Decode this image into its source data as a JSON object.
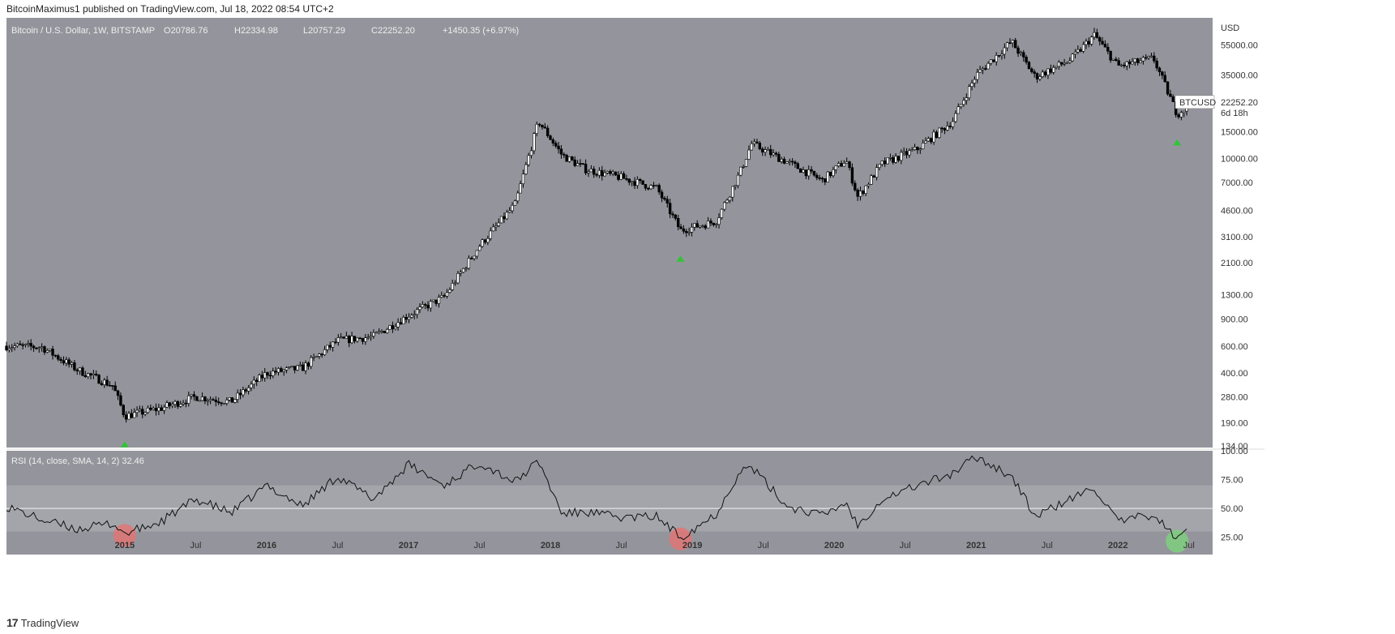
{
  "header": {
    "attribution": "BitcoinMaximus1 published on TradingView.com, Jul 18, 2022 08:54 UTC+2"
  },
  "legend": {
    "symbol": "Bitcoin / U.S. Dollar, 1W, BITSTAMP",
    "o_label": "O",
    "o_value": "20786.76",
    "h_label": "H",
    "h_value": "22334.98",
    "l_label": "L",
    "l_value": "20757.29",
    "c_label": "C",
    "c_value": "22252.20",
    "change": "+1450.35 (+6.97%)"
  },
  "price_tag": {
    "symbol": "BTCUSD",
    "price": "22252.20",
    "countdown": "6d 18h"
  },
  "rsi_legend": "RSI (14, close, SMA, 14, 2)  32.46",
  "footer": {
    "logo_mark": "17",
    "logo_text": "TradingView"
  },
  "colors": {
    "background": "#94959c",
    "rsi_band": "#a3a5ab",
    "candle_up": "#ffffff",
    "candle_down": "#000000",
    "marker_green": "#34c23a",
    "circle_red": "#e07676",
    "circle_green": "#7fcf7f"
  },
  "chart_data": [
    {
      "type": "candlestick",
      "title": "Bitcoin / U.S. Dollar, 1W, BITSTAMP",
      "scale": "log",
      "ylabel": "USD",
      "ylim": [
        134,
        75000
      ],
      "y_ticks": [
        "55000.00",
        "35000.00",
        "15000.00",
        "10000.00",
        "7000.00",
        "4600.00",
        "3100.00",
        "2100.00",
        "1300.00",
        "900.00",
        "600.00",
        "400.00",
        "280.00",
        "190.00",
        "134.00"
      ],
      "x_ticks": [
        "2015",
        "Jul",
        "2016",
        "Jul",
        "2017",
        "Jul",
        "2018",
        "Jul",
        "2019",
        "Jul",
        "2020",
        "Jul",
        "2021",
        "Jul",
        "2022",
        "Jul"
      ],
      "xlim": [
        "2014-03",
        "2022-09"
      ],
      "trend": [
        [
          "2014-03",
          600
        ],
        [
          "2014-06",
          590
        ],
        [
          "2014-09",
          420
        ],
        [
          "2014-12",
          330
        ],
        [
          "2015-01",
          210
        ],
        [
          "2015-04",
          235
        ],
        [
          "2015-07",
          280
        ],
        [
          "2015-10",
          260
        ],
        [
          "2016-01",
          400
        ],
        [
          "2016-04",
          430
        ],
        [
          "2016-07",
          650
        ],
        [
          "2016-10",
          690
        ],
        [
          "2017-01",
          950
        ],
        [
          "2017-04",
          1250
        ],
        [
          "2017-07",
          2700
        ],
        [
          "2017-10",
          5000
        ],
        [
          "2017-12",
          17500
        ],
        [
          "2018-02",
          10500
        ],
        [
          "2018-04",
          8500
        ],
        [
          "2018-07",
          7500
        ],
        [
          "2018-10",
          6400
        ],
        [
          "2018-12",
          3400
        ],
        [
          "2019-03",
          3900
        ],
        [
          "2019-05",
          8000
        ],
        [
          "2019-06",
          12500
        ],
        [
          "2019-09",
          9500
        ],
        [
          "2019-12",
          7200
        ],
        [
          "2020-02",
          9800
        ],
        [
          "2020-03",
          5600
        ],
        [
          "2020-05",
          9200
        ],
        [
          "2020-08",
          11500
        ],
        [
          "2020-11",
          17500
        ],
        [
          "2021-01",
          35000
        ],
        [
          "2021-04",
          58000
        ],
        [
          "2021-06",
          34000
        ],
        [
          "2021-09",
          44000
        ],
        [
          "2021-11",
          64000
        ],
        [
          "2022-01",
          40000
        ],
        [
          "2022-04",
          45000
        ],
        [
          "2022-06",
          19500
        ],
        [
          "2022-07",
          22252.2
        ]
      ],
      "markers": [
        {
          "date": "2015-01",
          "type": "green-up-arrow"
        },
        {
          "date": "2018-12",
          "type": "green-up-arrow"
        },
        {
          "date": "2022-06",
          "type": "green-up-arrow"
        }
      ],
      "last_price": 22252.2
    },
    {
      "type": "line",
      "title": "RSI (14, close, SMA, 14, 2)",
      "last_value": 32.46,
      "ylim": [
        10,
        100
      ],
      "y_ticks": [
        "100.00",
        "75.00",
        "50.00",
        "25.00"
      ],
      "band": [
        30,
        70
      ],
      "series": [
        [
          "2014-03",
          52
        ],
        [
          "2014-06",
          40
        ],
        [
          "2014-09",
          32
        ],
        [
          "2014-12",
          37
        ],
        [
          "2015-01",
          28
        ],
        [
          "2015-04",
          38
        ],
        [
          "2015-07",
          58
        ],
        [
          "2015-10",
          46
        ],
        [
          "2016-01",
          70
        ],
        [
          "2016-04",
          52
        ],
        [
          "2016-07",
          78
        ],
        [
          "2016-10",
          58
        ],
        [
          "2017-01",
          88
        ],
        [
          "2017-04",
          70
        ],
        [
          "2017-07",
          90
        ],
        [
          "2017-10",
          73
        ],
        [
          "2017-12",
          91
        ],
        [
          "2018-02",
          45
        ],
        [
          "2018-04",
          47
        ],
        [
          "2018-07",
          42
        ],
        [
          "2018-10",
          43
        ],
        [
          "2018-12",
          25
        ],
        [
          "2019-03",
          45
        ],
        [
          "2019-05",
          82
        ],
        [
          "2019-06",
          86
        ],
        [
          "2019-09",
          52
        ],
        [
          "2019-12",
          44
        ],
        [
          "2020-02",
          55
        ],
        [
          "2020-03",
          35
        ],
        [
          "2020-05",
          58
        ],
        [
          "2020-08",
          70
        ],
        [
          "2020-11",
          80
        ],
        [
          "2021-01",
          95
        ],
        [
          "2021-04",
          78
        ],
        [
          "2021-06",
          43
        ],
        [
          "2021-09",
          58
        ],
        [
          "2021-11",
          68
        ],
        [
          "2022-01",
          38
        ],
        [
          "2022-04",
          45
        ],
        [
          "2022-06",
          23
        ],
        [
          "2022-07",
          32.46
        ]
      ],
      "highlights": [
        {
          "date": "2015-01",
          "color": "red"
        },
        {
          "date": "2018-12",
          "color": "red"
        },
        {
          "date": "2022-06",
          "color": "green"
        }
      ]
    }
  ]
}
